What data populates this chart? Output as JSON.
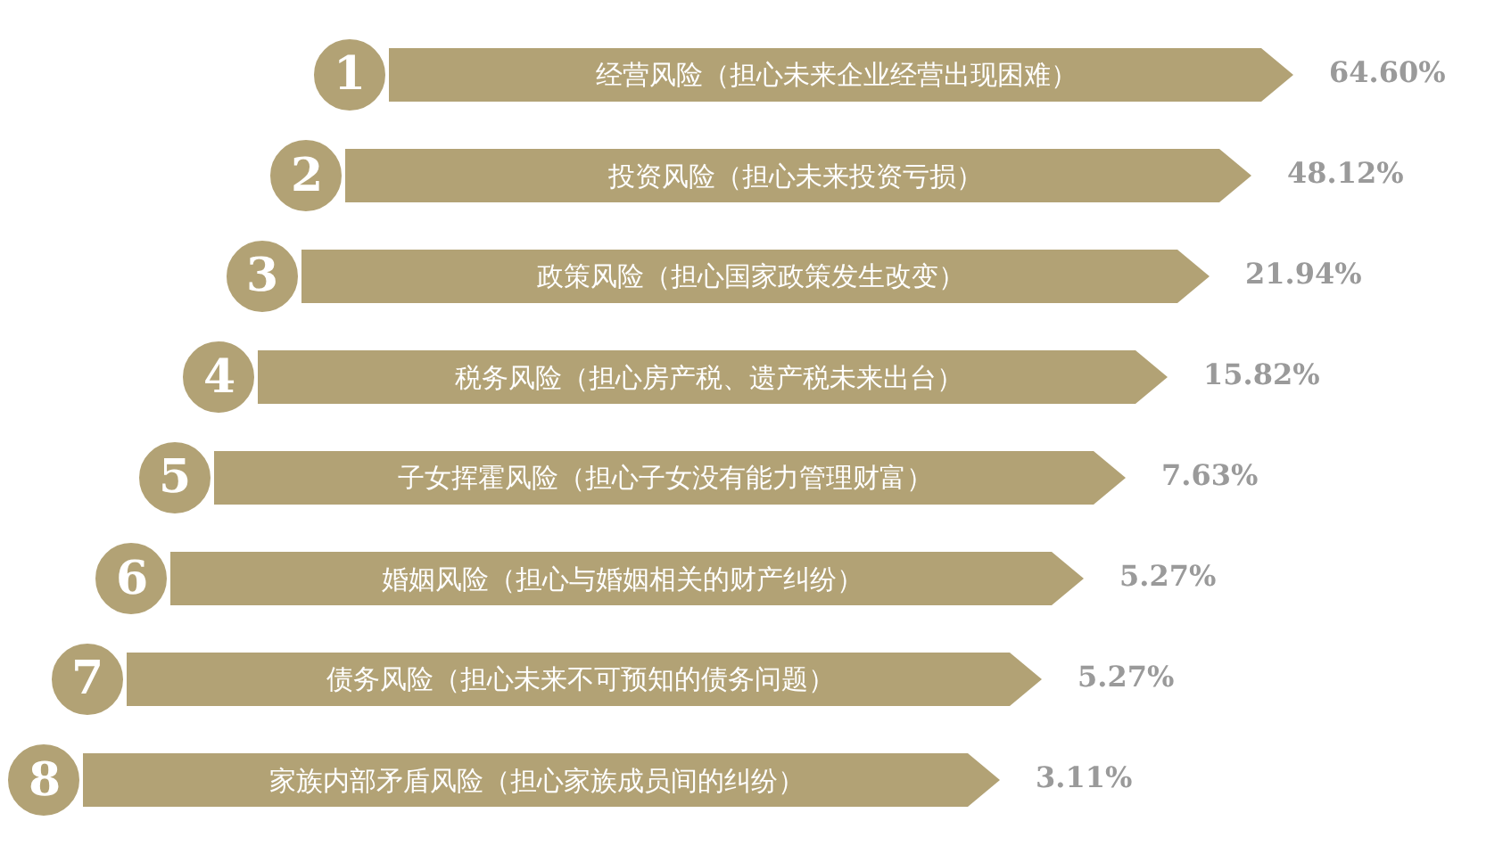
{
  "chart_data": {
    "type": "other",
    "categories": [
      "经营风险（担心未来企业经营出现困难）",
      "投资风险（担心未来投资亏损）",
      "政策风险（担心国家政策发生改变）",
      "税务风险（担心房产税、遗产税未来出台）",
      "子女挥霍风险（担心子女没有能力管理财富）",
      "婚姻风险（担心与婚姻相关的财产纠纷）",
      "债务风险（担心未来不可预知的债务问题）",
      "家族内部矛盾风险（担心家族成员间的纠纷）"
    ],
    "values": [
      64.6,
      48.12,
      21.94,
      15.82,
      7.63,
      5.27,
      5.27,
      3.11
    ],
    "value_labels": [
      "64.60%",
      "48.12%",
      "21.94%",
      "15.82%",
      "7.63%",
      "5.27%",
      "5.27%",
      "3.11%"
    ],
    "annotations": [
      "1",
      "2",
      "3",
      "4",
      "5",
      "6",
      "7",
      "8"
    ],
    "colors": [
      "#b2a275",
      "#b2a275",
      "#b2a275",
      "#b2a275",
      "#b2a275",
      "#b2a275",
      "#b2a275",
      "#b2a275"
    ]
  }
}
